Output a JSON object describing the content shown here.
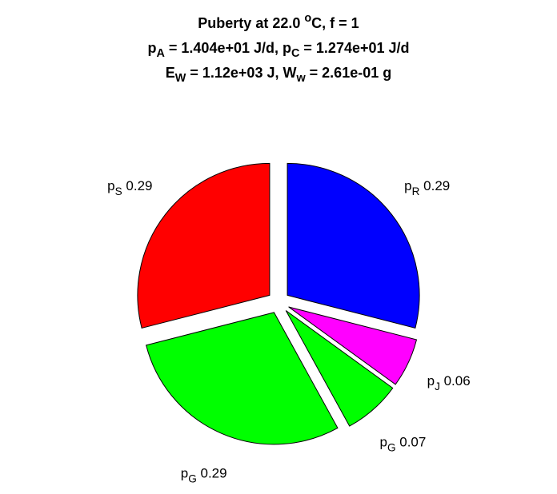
{
  "chart_data": {
    "type": "pie",
    "title_lines": [
      [
        {
          "text": "Puberty at 22.0 "
        },
        {
          "text": "o",
          "shift": "sup"
        },
        {
          "text": "C, f = 1"
        }
      ],
      [
        {
          "text": "p"
        },
        {
          "text": "A",
          "shift": "sub"
        },
        {
          "text": " = 1.404e+01 J/d,  p"
        },
        {
          "text": "C",
          "shift": "sub"
        },
        {
          "text": " = 1.274e+01 J/d"
        }
      ],
      [
        {
          "text": "E"
        },
        {
          "text": "W",
          "shift": "sub"
        },
        {
          "text": " = 1.12e+03 J, W"
        },
        {
          "text": "w",
          "shift": "sub"
        },
        {
          "text": " = 2.61e-01 g"
        }
      ]
    ],
    "labels": [
      [
        {
          "text": "p"
        },
        {
          "text": "R",
          "shift": "sub"
        }
      ],
      [
        {
          "text": "p"
        },
        {
          "text": "J",
          "shift": "sub"
        }
      ],
      [
        {
          "text": "p"
        },
        {
          "text": "G",
          "shift": "sub"
        }
      ],
      [
        {
          "text": "p"
        },
        {
          "text": "G",
          "shift": "sub"
        }
      ],
      [
        {
          "text": "p"
        },
        {
          "text": "S",
          "shift": "sub"
        }
      ]
    ],
    "values": [
      0.29,
      0.06,
      0.07,
      0.29,
      0.29
    ],
    "colors": [
      "#0000ff",
      "#ff00ff",
      "#00ff00",
      "#00ff00",
      "#ff0000"
    ],
    "explode": true
  }
}
